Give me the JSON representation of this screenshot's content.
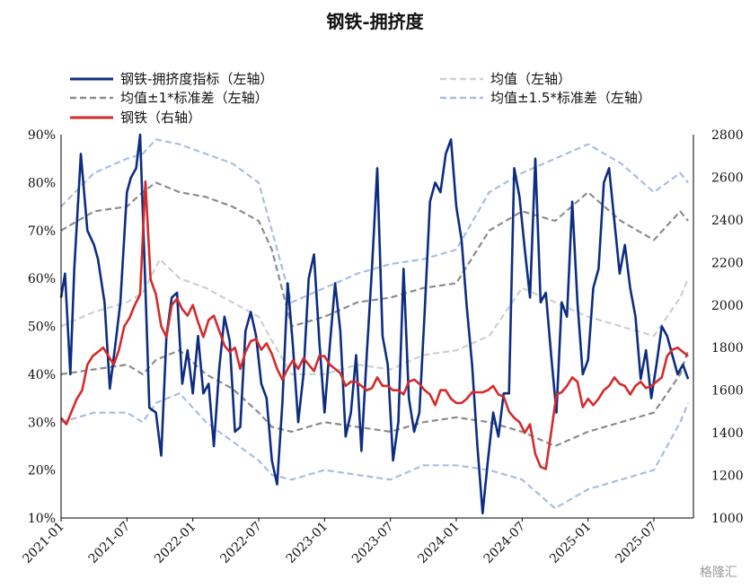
{
  "chart_data": {
    "type": "line",
    "title": "钢铁-拥挤度",
    "x_ticks": [
      "2021-01",
      "2021-07",
      "2022-01",
      "2022-07",
      "2023-01",
      "2023-07",
      "2024-01",
      "2024-07",
      "2025-01",
      "2025-07"
    ],
    "y_left_ticks": [
      "10%",
      "20%",
      "30%",
      "40%",
      "50%",
      "60%",
      "70%",
      "80%",
      "90%"
    ],
    "y_right_ticks": [
      "1000",
      "1200",
      "1400",
      "1600",
      "1800",
      "2000",
      "2200",
      "2400",
      "2600",
      "2800"
    ],
    "ylim_left": [
      0.1,
      0.9
    ],
    "ylim_right": [
      1000,
      2800
    ],
    "xlim": [
      "2021-01",
      "2025-10"
    ],
    "grid": false,
    "legend_position": "top",
    "colors": {
      "crowding": "#0d2d82",
      "mean": "#cfcfcf",
      "band1": "#8c8c8c",
      "band15": "#aabde0",
      "steel": "#d42b2b"
    },
    "legend": [
      {
        "key": "crowding",
        "label": "钢铁-拥挤度指标（左轴）",
        "style": "solid"
      },
      {
        "key": "mean",
        "label": "均值（左轴）",
        "style": "dashed"
      },
      {
        "key": "band1",
        "label": "均值±1*标准差（左轴）",
        "style": "dashed"
      },
      {
        "key": "band15",
        "label": "均值±1.5*标准差（左轴）",
        "style": "dashed"
      },
      {
        "key": "steel",
        "label": "钢铁（右轴）",
        "style": "solid"
      }
    ],
    "series": [
      {
        "name": "钢铁-拥挤度指标（左轴）",
        "axis": "left",
        "key": "crowding",
        "x": [
          2021.0,
          2021.03,
          2021.07,
          2021.1,
          2021.15,
          2021.2,
          2021.25,
          2021.28,
          2021.33,
          2021.37,
          2021.42,
          2021.45,
          2021.5,
          2021.53,
          2021.57,
          2021.6,
          2021.64,
          2021.67,
          2021.72,
          2021.76,
          2021.8,
          2021.84,
          2021.88,
          2021.92,
          2021.96,
          2022.0,
          2022.04,
          2022.08,
          2022.12,
          2022.16,
          2022.2,
          2022.24,
          2022.28,
          2022.32,
          2022.36,
          2022.4,
          2022.44,
          2022.48,
          2022.52,
          2022.56,
          2022.6,
          2022.64,
          2022.68,
          2022.72,
          2022.76,
          2022.8,
          2022.84,
          2022.88,
          2022.92,
          2022.96,
          2023.0,
          2023.04,
          2023.08,
          2023.12,
          2023.16,
          2023.2,
          2023.24,
          2023.28,
          2023.32,
          2023.36,
          2023.4,
          2023.44,
          2023.48,
          2023.52,
          2023.56,
          2023.6,
          2023.64,
          2023.68,
          2023.72,
          2023.76,
          2023.8,
          2023.84,
          2023.88,
          2023.92,
          2023.96,
          2024.0,
          2024.04,
          2024.08,
          2024.12,
          2024.16,
          2024.2,
          2024.24,
          2024.28,
          2024.32,
          2024.36,
          2024.4,
          2024.44,
          2024.48,
          2024.52,
          2024.56,
          2024.6,
          2024.64,
          2024.68,
          2024.72,
          2024.76,
          2024.8,
          2024.84,
          2024.88,
          2024.92,
          2024.96,
          2025.0,
          2025.04,
          2025.08,
          2025.12,
          2025.16,
          2025.2,
          2025.24,
          2025.28,
          2025.32,
          2025.36,
          2025.4,
          2025.44,
          2025.48,
          2025.52,
          2025.56,
          2025.6,
          2025.64,
          2025.68,
          2025.72,
          2025.76
        ],
        "y": [
          0.56,
          0.61,
          0.4,
          0.62,
          0.86,
          0.7,
          0.67,
          0.64,
          0.55,
          0.37,
          0.48,
          0.55,
          0.78,
          0.81,
          0.83,
          0.9,
          0.58,
          0.33,
          0.32,
          0.23,
          0.48,
          0.56,
          0.57,
          0.38,
          0.45,
          0.36,
          0.48,
          0.36,
          0.38,
          0.25,
          0.41,
          0.52,
          0.47,
          0.28,
          0.29,
          0.49,
          0.53,
          0.48,
          0.38,
          0.35,
          0.22,
          0.17,
          0.34,
          0.59,
          0.46,
          0.3,
          0.4,
          0.6,
          0.65,
          0.47,
          0.32,
          0.46,
          0.59,
          0.49,
          0.27,
          0.32,
          0.44,
          0.24,
          0.44,
          0.62,
          0.83,
          0.48,
          0.42,
          0.22,
          0.3,
          0.62,
          0.35,
          0.28,
          0.32,
          0.53,
          0.76,
          0.8,
          0.78,
          0.86,
          0.89,
          0.75,
          0.68,
          0.54,
          0.42,
          0.25,
          0.11,
          0.22,
          0.32,
          0.27,
          0.36,
          0.36,
          0.83,
          0.77,
          0.66,
          0.56,
          0.85,
          0.55,
          0.57,
          0.44,
          0.32,
          0.55,
          0.52,
          0.76,
          0.55,
          0.4,
          0.43,
          0.58,
          0.62,
          0.8,
          0.83,
          0.72,
          0.61,
          0.67,
          0.58,
          0.52,
          0.39,
          0.45,
          0.35,
          0.42,
          0.5,
          0.48,
          0.44,
          0.4,
          0.42,
          0.39
        ]
      },
      {
        "name": "均值（左轴）",
        "axis": "left",
        "key": "mean",
        "x": [
          2021.0,
          2021.25,
          2021.5,
          2021.62,
          2021.75,
          2021.9,
          2022.1,
          2022.3,
          2022.5,
          2022.6,
          2022.75,
          2023.0,
          2023.25,
          2023.5,
          2023.75,
          2024.0,
          2024.25,
          2024.5,
          2024.75,
          2025.0,
          2025.25,
          2025.5,
          2025.7,
          2025.76
        ],
        "y": [
          0.5,
          0.53,
          0.55,
          0.57,
          0.64,
          0.6,
          0.58,
          0.55,
          0.52,
          0.47,
          0.4,
          0.4,
          0.42,
          0.41,
          0.44,
          0.45,
          0.48,
          0.58,
          0.55,
          0.52,
          0.5,
          0.48,
          0.56,
          0.6
        ]
      },
      {
        "name": "均值+1*标准差（左轴）",
        "axis": "left",
        "key": "band1",
        "x": [
          2021.0,
          2021.25,
          2021.5,
          2021.62,
          2021.72,
          2021.9,
          2022.1,
          2022.3,
          2022.5,
          2022.6,
          2022.75,
          2023.0,
          2023.25,
          2023.5,
          2023.75,
          2024.0,
          2024.25,
          2024.5,
          2024.75,
          2025.0,
          2025.25,
          2025.5,
          2025.7,
          2025.76
        ],
        "y": [
          0.7,
          0.74,
          0.75,
          0.78,
          0.8,
          0.78,
          0.77,
          0.75,
          0.72,
          0.66,
          0.5,
          0.52,
          0.55,
          0.56,
          0.58,
          0.59,
          0.7,
          0.74,
          0.72,
          0.78,
          0.72,
          0.68,
          0.74,
          0.72
        ]
      },
      {
        "name": "均值-1*标准差（左轴）",
        "axis": "left",
        "key": "band1",
        "x": [
          2021.0,
          2021.25,
          2021.5,
          2021.62,
          2021.72,
          2021.9,
          2022.1,
          2022.3,
          2022.5,
          2022.6,
          2022.75,
          2023.0,
          2023.25,
          2023.5,
          2023.75,
          2024.0,
          2024.25,
          2024.5,
          2024.75,
          2025.0,
          2025.25,
          2025.5,
          2025.7,
          2025.76
        ],
        "y": [
          0.4,
          0.41,
          0.42,
          0.4,
          0.43,
          0.45,
          0.4,
          0.37,
          0.32,
          0.29,
          0.28,
          0.3,
          0.29,
          0.28,
          0.3,
          0.31,
          0.3,
          0.28,
          0.25,
          0.28,
          0.3,
          0.32,
          0.4,
          0.45
        ]
      },
      {
        "name": "均值+1.5*标准差（左轴）",
        "axis": "left",
        "key": "band15",
        "x": [
          2021.0,
          2021.25,
          2021.5,
          2021.62,
          2021.72,
          2021.9,
          2022.1,
          2022.3,
          2022.5,
          2022.6,
          2022.75,
          2023.0,
          2023.25,
          2023.5,
          2023.75,
          2024.0,
          2024.25,
          2024.5,
          2024.75,
          2025.0,
          2025.25,
          2025.5,
          2025.7,
          2025.76
        ],
        "y": [
          0.75,
          0.82,
          0.85,
          0.86,
          0.89,
          0.88,
          0.86,
          0.84,
          0.8,
          0.7,
          0.55,
          0.58,
          0.61,
          0.63,
          0.64,
          0.66,
          0.78,
          0.82,
          0.85,
          0.88,
          0.84,
          0.78,
          0.82,
          0.8
        ]
      },
      {
        "name": "均值-1.5*标准差（左轴）",
        "axis": "left",
        "key": "band15",
        "x": [
          2021.0,
          2021.25,
          2021.5,
          2021.62,
          2021.72,
          2021.9,
          2022.1,
          2022.3,
          2022.5,
          2022.6,
          2022.75,
          2023.0,
          2023.25,
          2023.5,
          2023.75,
          2024.0,
          2024.25,
          2024.5,
          2024.75,
          2025.0,
          2025.25,
          2025.5,
          2025.7,
          2025.76
        ],
        "y": [
          0.3,
          0.32,
          0.32,
          0.3,
          0.34,
          0.36,
          0.3,
          0.26,
          0.22,
          0.19,
          0.18,
          0.2,
          0.19,
          0.18,
          0.21,
          0.21,
          0.2,
          0.18,
          0.12,
          0.16,
          0.18,
          0.2,
          0.3,
          0.34
        ]
      },
      {
        "name": "钢铁（右轴）",
        "axis": "right",
        "key": "steel",
        "x": [
          2021.0,
          2021.04,
          2021.08,
          2021.12,
          2021.16,
          2021.2,
          2021.24,
          2021.28,
          2021.32,
          2021.36,
          2021.4,
          2021.44,
          2021.48,
          2021.52,
          2021.56,
          2021.6,
          2021.64,
          2021.68,
          2021.72,
          2021.76,
          2021.8,
          2021.84,
          2021.88,
          2021.92,
          2021.96,
          2022.0,
          2022.04,
          2022.08,
          2022.12,
          2022.16,
          2022.2,
          2022.24,
          2022.28,
          2022.32,
          2022.36,
          2022.4,
          2022.44,
          2022.48,
          2022.52,
          2022.56,
          2022.6,
          2022.64,
          2022.68,
          2022.72,
          2022.76,
          2022.8,
          2022.84,
          2022.88,
          2022.92,
          2022.96,
          2023.0,
          2023.04,
          2023.08,
          2023.12,
          2023.16,
          2023.2,
          2023.24,
          2023.28,
          2023.32,
          2023.36,
          2023.4,
          2023.44,
          2023.48,
          2023.52,
          2023.56,
          2023.6,
          2023.64,
          2023.68,
          2023.72,
          2023.76,
          2023.8,
          2023.84,
          2023.88,
          2023.92,
          2023.96,
          2024.0,
          2024.04,
          2024.08,
          2024.12,
          2024.16,
          2024.2,
          2024.24,
          2024.28,
          2024.32,
          2024.36,
          2024.4,
          2024.44,
          2024.48,
          2024.52,
          2024.56,
          2024.6,
          2024.64,
          2024.68,
          2024.72,
          2024.76,
          2024.8,
          2024.84,
          2024.88,
          2024.92,
          2024.96,
          2025.0,
          2025.04,
          2025.08,
          2025.12,
          2025.16,
          2025.2,
          2025.24,
          2025.28,
          2025.32,
          2025.36,
          2025.4,
          2025.44,
          2025.48,
          2025.52,
          2025.56,
          2025.6,
          2025.64,
          2025.68,
          2025.72,
          2025.76
        ],
        "y": [
          1470,
          1440,
          1500,
          1560,
          1600,
          1720,
          1760,
          1780,
          1800,
          1760,
          1720,
          1790,
          1900,
          1940,
          2000,
          2050,
          2580,
          2120,
          2050,
          1900,
          1850,
          2000,
          2030,
          1980,
          1950,
          2000,
          1920,
          1850,
          1930,
          1950,
          1880,
          1810,
          1780,
          1800,
          1700,
          1780,
          1830,
          1840,
          1790,
          1820,
          1770,
          1700,
          1650,
          1700,
          1740,
          1700,
          1750,
          1720,
          1690,
          1760,
          1760,
          1720,
          1700,
          1680,
          1620,
          1640,
          1640,
          1620,
          1600,
          1610,
          1660,
          1620,
          1620,
          1600,
          1600,
          1580,
          1640,
          1650,
          1630,
          1600,
          1580,
          1530,
          1600,
          1600,
          1560,
          1540,
          1540,
          1560,
          1590,
          1590,
          1590,
          1600,
          1620,
          1580,
          1570,
          1500,
          1470,
          1450,
          1400,
          1440,
          1300,
          1240,
          1230,
          1400,
          1580,
          1590,
          1620,
          1660,
          1640,
          1520,
          1560,
          1530,
          1560,
          1600,
          1620,
          1660,
          1630,
          1620,
          1580,
          1620,
          1640,
          1610,
          1620,
          1640,
          1660,
          1760,
          1790,
          1800,
          1780,
          1760
        ]
      }
    ],
    "watermark": "格隆汇"
  }
}
